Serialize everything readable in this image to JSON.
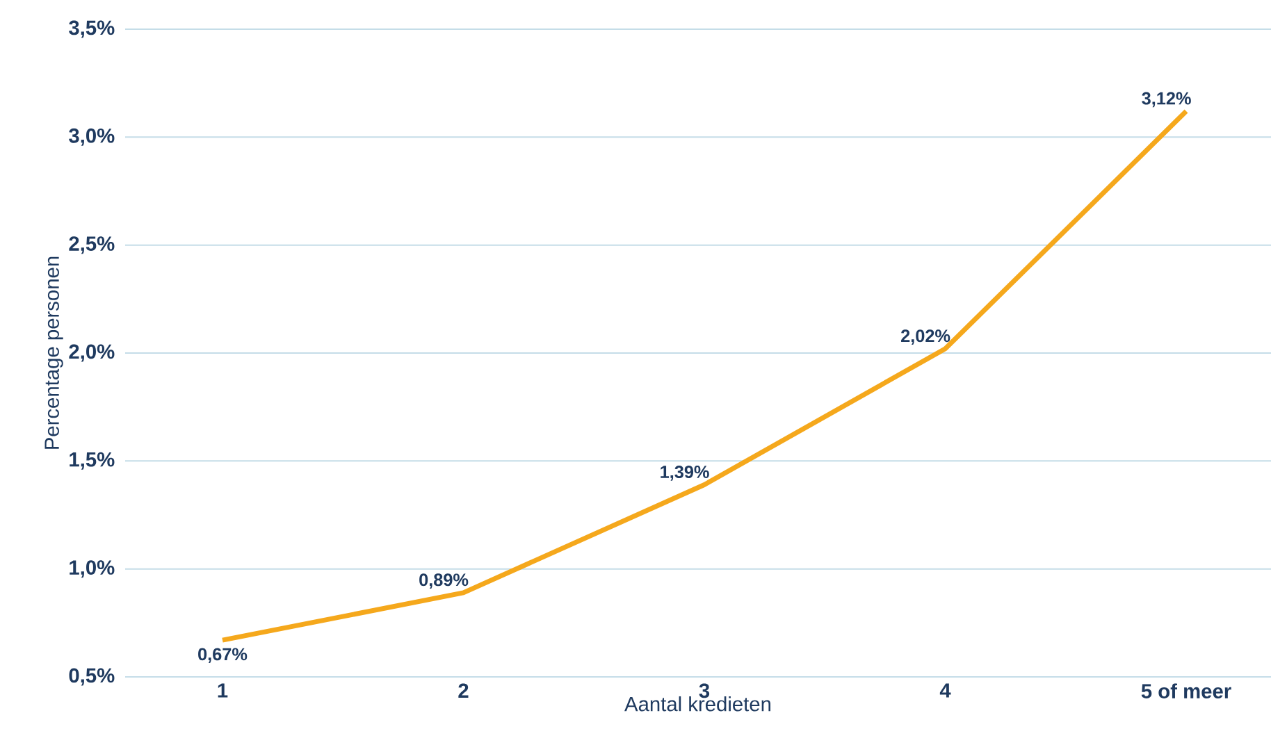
{
  "chart_data": {
    "type": "line",
    "xlabel": "Aantal kredieten",
    "ylabel": "Percentage personen",
    "categories": [
      "1",
      "2",
      "3",
      "4",
      "5 of meer"
    ],
    "series": [
      {
        "color": "#f5a81c",
        "values": [
          0.67,
          0.89,
          1.39,
          2.02,
          3.12
        ],
        "value_labels": [
          "0,67%",
          "0,89%",
          "1,39%",
          "2,02%",
          "3,12%"
        ]
      }
    ],
    "ylim": [
      0.5,
      3.5
    ],
    "yticks": [
      {
        "value": 0.5,
        "label": "0,5%"
      },
      {
        "value": 1.0,
        "label": "1,0%"
      },
      {
        "value": 1.5,
        "label": "1,5%"
      },
      {
        "value": 2.0,
        "label": "2,0%"
      },
      {
        "value": 2.5,
        "label": "2,5%"
      },
      {
        "value": 3.0,
        "label": "3,0%"
      },
      {
        "value": 3.5,
        "label": "3,5%"
      }
    ],
    "grid": "y",
    "marker": "none",
    "line_style": "solid"
  }
}
